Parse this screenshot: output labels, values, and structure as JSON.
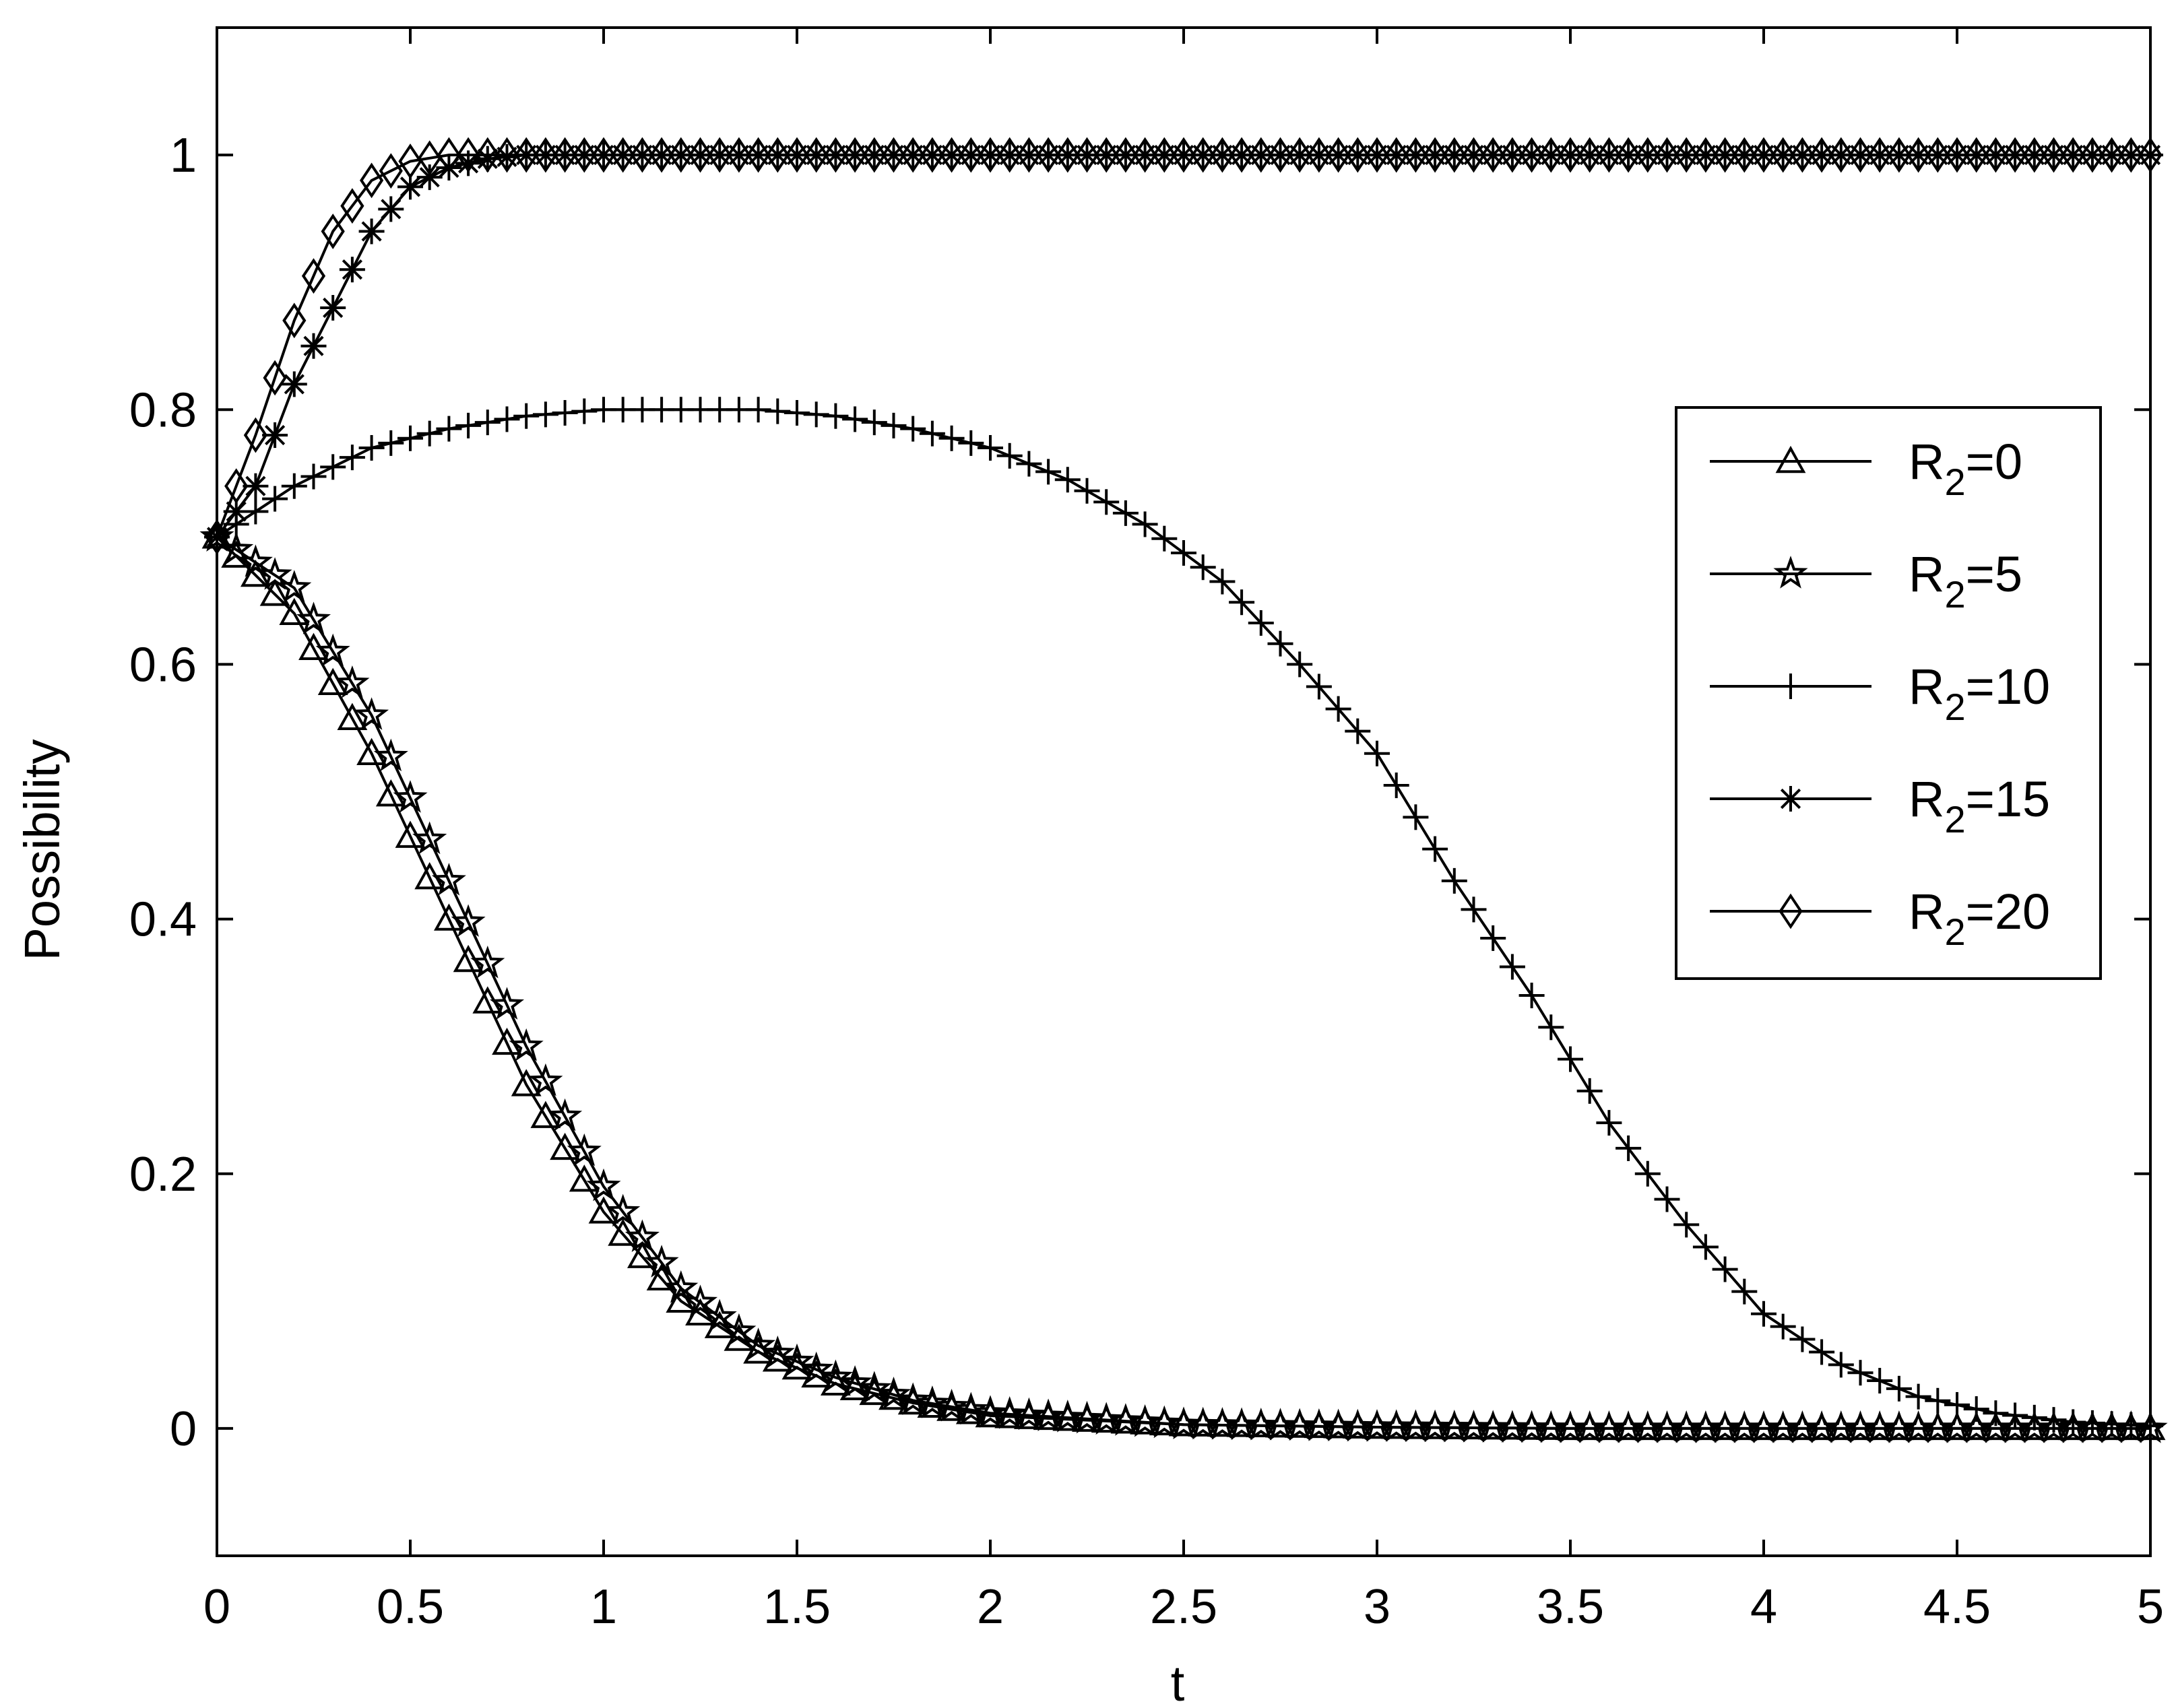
{
  "chart_data": {
    "type": "line",
    "title": "",
    "xlabel": "t",
    "ylabel": "Possibility",
    "xlim": [
      0,
      5
    ],
    "ylim": [
      -0.1,
      1.1
    ],
    "xticks": [
      0,
      0.5,
      1,
      1.5,
      2,
      2.5,
      3,
      3.5,
      4,
      4.5,
      5
    ],
    "xtick_labels": [
      "0",
      "0.5",
      "1",
      "1.5",
      "2",
      "2.5",
      "3",
      "3.5",
      "4",
      "4.5",
      "5"
    ],
    "yticks": [
      0,
      0.2,
      0.4,
      0.6,
      0.8,
      1
    ],
    "ytick_labels": [
      "0",
      "0.2",
      "0.4",
      "0.6",
      "0.8",
      "1"
    ],
    "grid": false,
    "legend_position": "right-center",
    "line_color": "#000000",
    "series": [
      {
        "name": "R2=0",
        "legend": {
          "base": "R",
          "sub": "2",
          "rest": "=0"
        },
        "marker": "triangle",
        "x": [
          0,
          0.2,
          0.4,
          0.6,
          0.8,
          1.0,
          1.2,
          1.4,
          1.6,
          1.8,
          2.0,
          2.5,
          3.0,
          3.5,
          4.0,
          4.5,
          5.0
        ],
        "y": [
          0.7,
          0.64,
          0.53,
          0.4,
          0.27,
          0.17,
          0.1,
          0.06,
          0.035,
          0.02,
          0.01,
          0.003,
          0.001,
          0,
          0,
          0,
          0
        ]
      },
      {
        "name": "R2=5",
        "legend": {
          "base": "R",
          "sub": "2",
          "rest": "=5"
        },
        "marker": "star",
        "x": [
          0,
          0.2,
          0.4,
          0.6,
          0.8,
          1.0,
          1.2,
          1.4,
          1.6,
          1.8,
          2.0,
          2.5,
          3.0,
          3.5,
          4.0,
          4.5,
          5.0
        ],
        "y": [
          0.7,
          0.66,
          0.56,
          0.43,
          0.3,
          0.19,
          0.11,
          0.065,
          0.04,
          0.022,
          0.012,
          0.003,
          0.001,
          0,
          0,
          0,
          0
        ]
      },
      {
        "name": "R2=10",
        "legend": {
          "base": "R",
          "sub": "2",
          "rest": "=10"
        },
        "marker": "plus",
        "x": [
          0,
          0.2,
          0.4,
          0.6,
          0.8,
          1.0,
          1.2,
          1.4,
          1.6,
          1.8,
          2.0,
          2.2,
          2.4,
          2.6,
          2.8,
          3.0,
          3.2,
          3.4,
          3.6,
          3.8,
          4.0,
          4.2,
          4.4,
          4.6,
          4.8,
          5.0
        ],
        "y": [
          0.7,
          0.74,
          0.77,
          0.785,
          0.795,
          0.8,
          0.8,
          0.8,
          0.795,
          0.785,
          0.77,
          0.745,
          0.71,
          0.665,
          0.6,
          0.53,
          0.43,
          0.34,
          0.24,
          0.16,
          0.09,
          0.05,
          0.025,
          0.012,
          0.005,
          0.002
        ]
      },
      {
        "name": "R2=15",
        "legend": {
          "base": "R",
          "sub": "2",
          "rest": "=15"
        },
        "marker": "asterisk",
        "x": [
          0,
          0.1,
          0.2,
          0.3,
          0.4,
          0.5,
          0.6,
          0.7,
          0.8,
          1.0,
          1.5,
          2.0,
          3.0,
          4.0,
          5.0
        ],
        "y": [
          0.7,
          0.74,
          0.82,
          0.88,
          0.94,
          0.975,
          0.99,
          0.997,
          1.0,
          1.0,
          1.0,
          1.0,
          1.0,
          1.0,
          1.0
        ]
      },
      {
        "name": "R2=20",
        "legend": {
          "base": "R",
          "sub": "2",
          "rest": "=20"
        },
        "marker": "diamond",
        "x": [
          0,
          0.1,
          0.2,
          0.3,
          0.4,
          0.5,
          0.6,
          0.7,
          1.0,
          1.5,
          2.0,
          3.0,
          4.0,
          5.0
        ],
        "y": [
          0.7,
          0.78,
          0.87,
          0.94,
          0.98,
          0.995,
          1.0,
          1.0,
          1.0,
          1.0,
          1.0,
          1.0,
          1.0,
          1.0
        ]
      }
    ]
  }
}
